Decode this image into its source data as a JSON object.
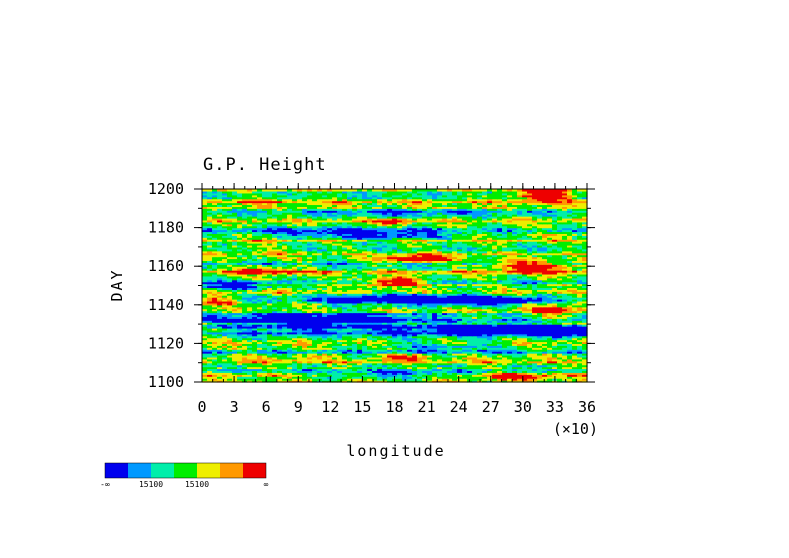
{
  "chart_data": {
    "type": "heatmap",
    "title": "G.P. Height",
    "xlabel": "longitude",
    "ylabel": "DAY",
    "x_multiplier_label": "(×10)",
    "xlim": [
      0,
      36
    ],
    "ylim": [
      1100,
      1200
    ],
    "x_tick_values": [
      0,
      3,
      6,
      9,
      12,
      15,
      18,
      21,
      24,
      27,
      30,
      33,
      36
    ],
    "x_tick_labels": [
      "0",
      "3",
      "6",
      "9",
      "12",
      "15",
      "18",
      "21",
      "24",
      "27",
      "30",
      "33",
      "36"
    ],
    "y_tick_values": [
      1100,
      1120,
      1140,
      1160,
      1180,
      1200
    ],
    "y_tick_labels": [
      "1100",
      "1120",
      "1140",
      "1160",
      "1180",
      "1200"
    ],
    "levels": [
      {
        "color": "#0000ee"
      },
      {
        "color": "#0099ff"
      },
      {
        "color": "#00eeaa"
      },
      {
        "color": "#00ee00"
      },
      {
        "color": "#eeee00"
      },
      {
        "color": "#ff9900"
      },
      {
        "color": "#ee0000"
      }
    ],
    "colorbar_labels": [
      "-∞",
      "15100",
      "15100",
      "∞"
    ],
    "features": [
      {
        "day": 1131,
        "lon": 10,
        "level": 0,
        "amp": 3.0,
        "dlon": 9,
        "dday": 5
      },
      {
        "day": 1128,
        "lon": 26,
        "level": 0,
        "amp": 3.0,
        "dlon": 8,
        "dday": 3
      },
      {
        "day": 1127,
        "lon": 34,
        "level": 0,
        "amp": 2.5,
        "dlon": 4,
        "dday": 3
      },
      {
        "day": 1150,
        "lon": 3,
        "level": 0,
        "amp": 2.2,
        "dlon": 3,
        "dday": 2
      },
      {
        "day": 1143,
        "lon": 19,
        "level": 0,
        "amp": 2.6,
        "dlon": 8,
        "dday": 3
      },
      {
        "day": 1142,
        "lon": 27,
        "level": 0,
        "amp": 2.5,
        "dlon": 5,
        "dday": 2
      },
      {
        "day": 1119,
        "lon": 22,
        "level": 1,
        "amp": 2.0,
        "dlon": 6,
        "dday": 3
      },
      {
        "day": 1104,
        "lon": 18,
        "level": 0,
        "amp": 1.8,
        "dlon": 8,
        "dday": 2
      },
      {
        "day": 1176,
        "lon": 17,
        "level": 0,
        "amp": 1.5,
        "dlon": 6,
        "dday": 2
      },
      {
        "day": 1178,
        "lon": 13,
        "level": 1,
        "amp": 2.0,
        "dlon": 10,
        "dday": 3
      },
      {
        "day": 1188,
        "lon": 20,
        "level": 1,
        "amp": 1.5,
        "dlon": 10,
        "dday": 2
      },
      {
        "day": 1152,
        "lon": 18,
        "level": 6,
        "amp": 3.0,
        "dlon": 2.5,
        "dday": 2.5
      },
      {
        "day": 1164,
        "lon": 20,
        "level": 6,
        "amp": 3.0,
        "dlon": 3,
        "dday": 2
      },
      {
        "day": 1160,
        "lon": 31,
        "level": 6,
        "amp": 3.0,
        "dlon": 4,
        "dday": 3
      },
      {
        "day": 1197,
        "lon": 32,
        "level": 6,
        "amp": 3.0,
        "dlon": 3,
        "dday": 3
      },
      {
        "day": 1158,
        "lon": 6,
        "level": 6,
        "amp": 2.3,
        "dlon": 3,
        "dday": 2
      },
      {
        "day": 1142,
        "lon": 1,
        "level": 6,
        "amp": 2.0,
        "dlon": 2,
        "dday": 2
      },
      {
        "day": 1103,
        "lon": 29,
        "level": 6,
        "amp": 2.3,
        "dlon": 3,
        "dday": 1.5
      },
      {
        "day": 1113,
        "lon": 19,
        "level": 6,
        "amp": 2.0,
        "dlon": 2,
        "dday": 1.5
      },
      {
        "day": 1137,
        "lon": 33,
        "level": 6,
        "amp": 2.0,
        "dlon": 2,
        "dday": 3
      },
      {
        "day": 1183,
        "lon": 18,
        "level": 5,
        "amp": 2.0,
        "dlon": 2,
        "dday": 2
      },
      {
        "day": 1170,
        "lon": 5,
        "level": 4,
        "amp": 1.5,
        "dlon": 4,
        "dday": 3
      },
      {
        "day": 1112,
        "lon": 8,
        "level": 4,
        "amp": 1.5,
        "dlon": 4,
        "dday": 2
      },
      {
        "day": 1194,
        "lon": 5,
        "level": 4,
        "amp": 1.5,
        "dlon": 5,
        "dday": 2
      }
    ]
  }
}
